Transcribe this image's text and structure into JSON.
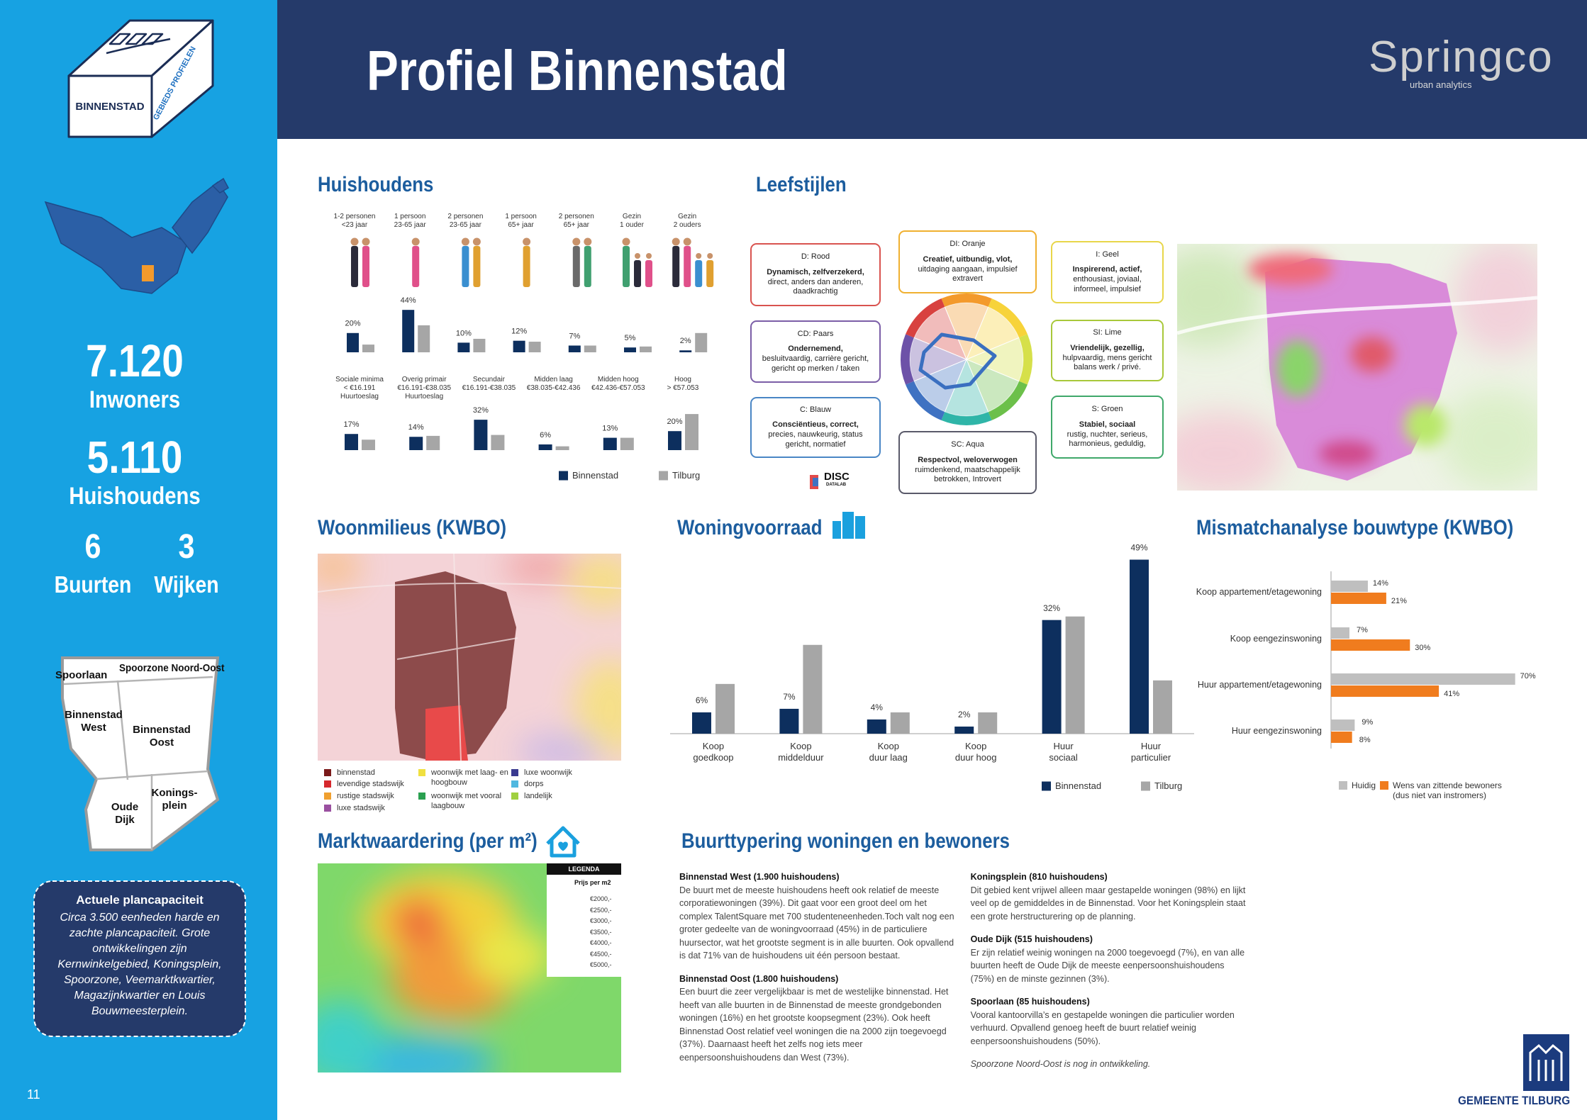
{
  "header": {
    "title": "Profiel Binnenstad",
    "logo": "Springco",
    "logo_sub": "urban analytics"
  },
  "sidebar": {
    "badge": "BINNENSTAD",
    "badge_side": "GEBIEDS PROFIELEN",
    "inwoners": {
      "value": "7.120",
      "label": "Inwoners"
    },
    "huishoudens": {
      "value": "5.110",
      "label": "Huishoudens"
    },
    "buurten": {
      "value": "6",
      "label": "Buurten"
    },
    "wijken": {
      "value": "3",
      "label": "Wijken"
    },
    "map_labels": [
      "Spoorlaan",
      "Spoorzone Noord-Oost",
      "Binnenstad\nWest",
      "Binnenstad\nOost",
      "Konings-\nplein",
      "Oude\nDijk"
    ],
    "plancapaciteit": {
      "title": "Actuele plancapaciteit",
      "text": "Circa 3.500 eenheden harde en zachte plancapaciteit. Grote ontwikkelingen zijn Kernwinkelgebied, Koningsplein, Spoorzone, Veemarktkwartier, Magazijnkwartier en Louis Bouwmeesterplein."
    },
    "page_number": "11"
  },
  "leefstijlen": {
    "title": "Leefstijlen",
    "styles": [
      {
        "name": "D: Rood",
        "keywords": "Dynamisch, zelfverzekerd,",
        "text": "direct, anders dan anderen, daadkrachtig"
      },
      {
        "name": "CD: Paars",
        "keywords": "Ondernemend,",
        "text": "besluitvaardig, carrière gericht, gericht op merken / taken"
      },
      {
        "name": "C: Blauw",
        "keywords": "Consciëntieus, correct,",
        "text": "precies, nauwkeurig, status gericht, normatief"
      },
      {
        "name": "DI: Oranje",
        "keywords": "Creatief, uitbundig, vlot,",
        "text": "uitdaging aangaan, impulsief extravert"
      },
      {
        "name": "I: Geel",
        "keywords": "Inspirerend, actief,",
        "text": "enthousiast, joviaal, informeel, impulsief"
      },
      {
        "name": "SI: Lime",
        "keywords": "Vriendelijk, gezellig,",
        "text": "hulpvaardig, mens gericht balans werk / privé."
      },
      {
        "name": "S: Groen",
        "keywords": "Stabiel, sociaal",
        "text": "rustig, nuchter, serieus, harmonieus, geduldig,"
      },
      {
        "name": "SC: Aqua",
        "keywords": "Respectvol, weloverwogen",
        "text": "ruimdenkend, maatschappelijk betrokken, Introvert"
      }
    ],
    "logo": "DISC",
    "logo_sub": "DATALAB"
  },
  "woonmilieus": {
    "title": "Woonmilieus (KWBO)",
    "legend": [
      "binnenstad",
      "levendige stadswijk",
      "rustige stadswijk",
      "luxe stadswijk",
      "woonwijk met laag- en hoogbouw",
      "woonwijk met vooral laagbouw",
      "luxe woonwijk",
      "dorps",
      "landelijk"
    ]
  },
  "marktwaardering": {
    "title": "Marktwaardering (per m²)",
    "legend_title": "LEGENDA",
    "legend_subtitle": "Prijs per m2",
    "legend": [
      "€2000,-",
      "€2500,-",
      "€3000,-",
      "€3500,-",
      "€4000,-",
      "€4500,-",
      "€5000,-"
    ]
  },
  "buurttypering": {
    "title": "Buurttypering woningen en bewoners",
    "items": [
      {
        "heading": "Binnenstad West (1.900 huishoudens)",
        "text": "De buurt met de meeste huishoudens heeft ook relatief de meeste corporatiewoningen (39%). Dit gaat voor een groot deel om  het complex TalentSquare met 700 studenteneenheden.Toch valt nog een groter gedeelte van de woningvoorraad (45%) in de particuliere huursector, wat het grootste segment is in alle buurten. Ook opvallend is dat 71% van de huishoudens uit één persoon bestaat."
      },
      {
        "heading": "Binnenstad Oost (1.800 huishoudens)",
        "text": "Een buurt die zeer vergelijkbaar is met de westelijke binnenstad. Het heeft van alle buurten in de Binnenstad de meeste grondgebonden woningen (16%) en  het grootste koopsegment (23%). Ook heeft Binnenstad Oost relatief veel woningen die na 2000 zijn toegevoegd (37%). Daarnaast heeft het zelfs nog iets meer eenpersoonshuishoudens dan West (73%)."
      },
      {
        "heading": "Koningsplein (810 huishoudens)",
        "text": "Dit gebied kent vrijwel alleen maar gestapelde woningen (98%) en lijkt veel op de gemiddeldes in de Binnenstad. Voor het Koningsplein staat een grote herstructurering op de planning."
      },
      {
        "heading": "Oude Dijk (515 huishoudens)",
        "text": "Er zijn relatief weinig woningen na 2000 toegevoegd (7%), en van alle buurten heeft de Oude Dijk de meeste eenpersoonshuishoudens (75%) en de minste gezinnen (3%)."
      },
      {
        "heading": "Spoorlaan (85 huishoudens)",
        "text": "Vooral kantoorvilla’s en gestapelde woningen die particulier worden verhuurd. Opvallend genoeg heeft de buurt relatief weinig eenpersoonshuishoudens (50%)."
      }
    ],
    "note": "Spoorzone Noord-Oost is nog in ontwikkeling."
  },
  "footer": {
    "logo": "GEMEENTE TILBURG"
  },
  "chart_data": [
    {
      "type": "bar",
      "title": "Huishoudens",
      "categories": [
        "1-2 personen\n<23 jaar",
        "1 persoon\n23-65 jaar",
        "2 personen\n23-65 jaar",
        "1 persoon\n65+ jaar",
        "2 personen\n65+ jaar",
        "Gezin\n1 ouder",
        "Gezin\n2 ouders"
      ],
      "series": [
        {
          "color": "#0d2f5e",
          "values": [
            20,
            44,
            10,
            12,
            7,
            5,
            2
          ],
          "value_labels": [
            "20%",
            "44%",
            "10%",
            "12%",
            "7%",
            "5%",
            "2%"
          ]
        },
        {
          "color": "#a6a6a6",
          "values": [
            8,
            28,
            14,
            11,
            7,
            6,
            20
          ]
        }
      ]
    },
    {
      "type": "bar",
      "categories": [
        "Sociale minima\n< €16.191\nHuurtoeslag",
        "Overig primair\n€16.191-€38.035\nHuurtoeslag",
        "Secundair\n€16.191-€38.035",
        "Midden laag\n€38.035-€42.436",
        "Midden hoog\n€42.436-€57.053",
        "Hoog\n> €57.053"
      ],
      "series": [
        {
          "name": "Binnenstad",
          "color": "#0d2f5e",
          "values": [
            17,
            14,
            32,
            6,
            13,
            20
          ],
          "value_labels": [
            "17%",
            "14%",
            "32%",
            "6%",
            "13%",
            "20%"
          ]
        },
        {
          "name": "Tilburg",
          "color": "#a6a6a6",
          "values": [
            11,
            15,
            16,
            4,
            13,
            38
          ]
        }
      ]
    },
    {
      "type": "bar",
      "title": "Woningvoorraad",
      "categories": [
        "Koop\ngoedkoop",
        "Koop\nmiddelduur",
        "Koop\nduur laag",
        "Koop\nduur hoog",
        "Huur\nsociaal",
        "Huur\nparticulier"
      ],
      "series": [
        {
          "name": "Binnenstad",
          "color": "#0d2f5e",
          "values": [
            6,
            7,
            4,
            2,
            32,
            49
          ],
          "value_labels": [
            "6%",
            "7%",
            "4%",
            "2%",
            "32%",
            "49%"
          ]
        },
        {
          "name": "Tilburg",
          "color": "#a6a6a6",
          "values": [
            14,
            25,
            6,
            6,
            33,
            15
          ]
        }
      ]
    },
    {
      "type": "barh",
      "title": "Mismatchanalyse bouwtype (KWBO)",
      "categories": [
        "Koop appartement/etagewoning",
        "Koop eengezinswoning",
        "Huur appartement/etagewoning",
        "Huur eengezinswoning"
      ],
      "series": [
        {
          "name": "Huidig",
          "color": "#bfbfbf",
          "values": [
            14,
            7,
            70,
            9
          ],
          "value_labels": [
            "14%",
            "7%",
            "70%",
            "9%"
          ]
        },
        {
          "name": "Wens van zittende bewoners\n(dus niet van instromers)",
          "color": "#f07c1e",
          "values": [
            21,
            30,
            41,
            8
          ],
          "value_labels": [
            "21%",
            "30%",
            "41%",
            "8%"
          ]
        }
      ]
    }
  ]
}
